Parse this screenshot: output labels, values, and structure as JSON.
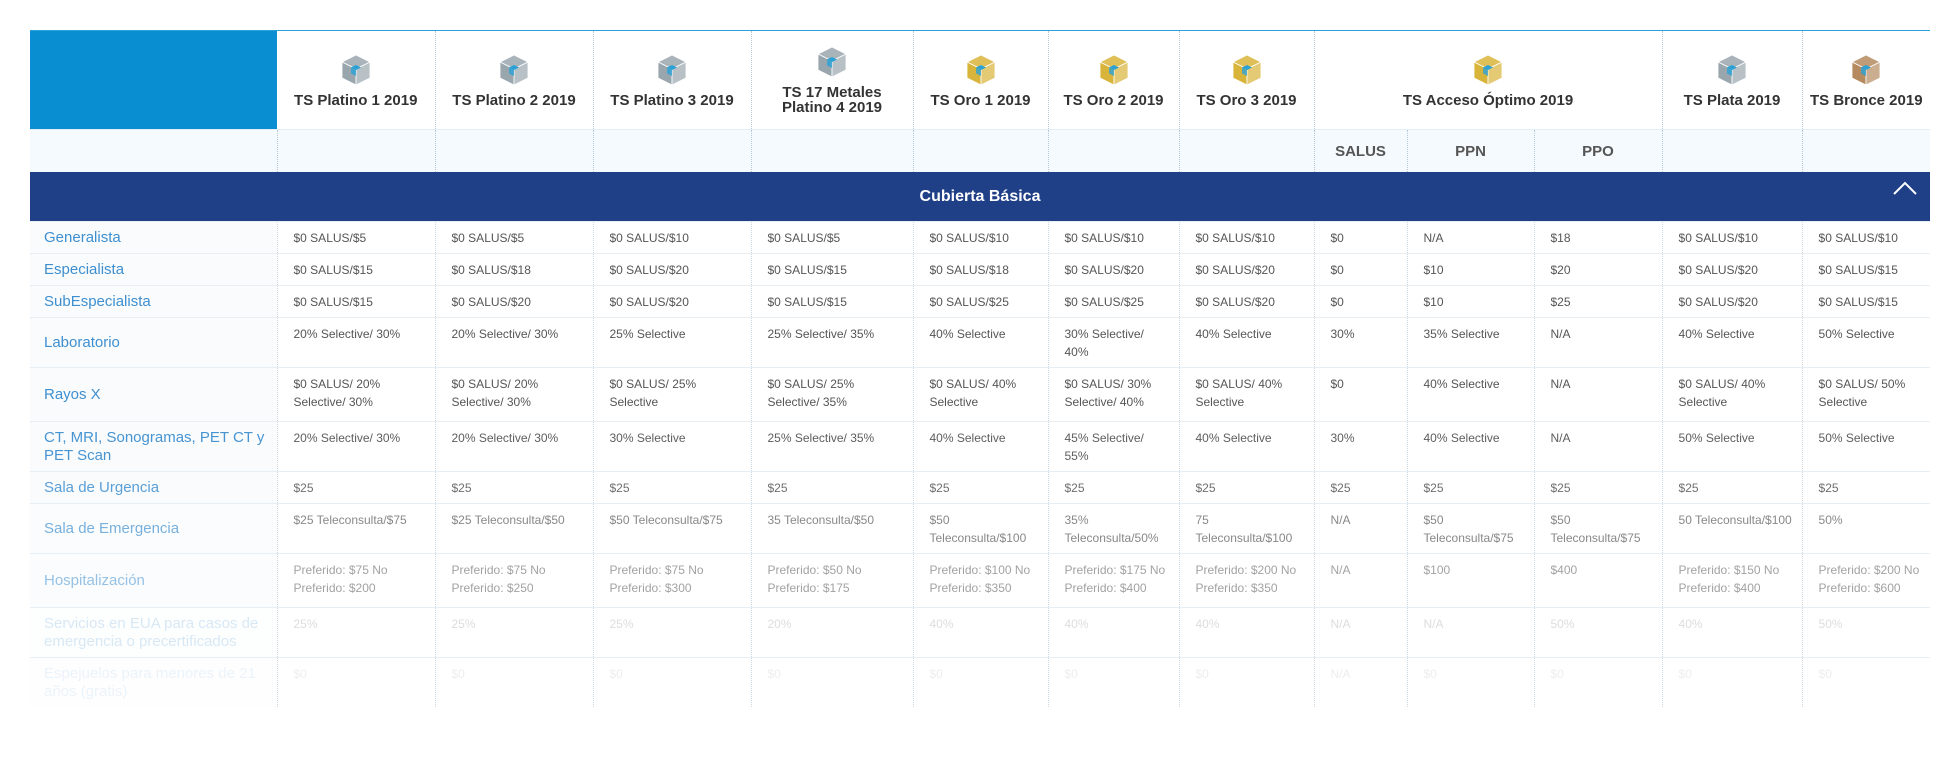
{
  "plans": [
    {
      "name": "TS Platino 1 2019",
      "tier": "platinum"
    },
    {
      "name": "TS Platino 2 2019",
      "tier": "platinum"
    },
    {
      "name": "TS Platino 3 2019",
      "tier": "platinum"
    },
    {
      "name": "TS 17 Metales Platino 4 2019",
      "tier": "platinum"
    },
    {
      "name": "TS Oro 1 2019",
      "tier": "gold"
    },
    {
      "name": "TS Oro 2 2019",
      "tier": "gold"
    },
    {
      "name": "TS Oro 3 2019",
      "tier": "gold"
    },
    {
      "name": "TS Acceso Óptimo 2019",
      "tier": "gold"
    },
    {
      "name": "TS Plata 2019",
      "tier": "silver"
    },
    {
      "name": "TS Bronce 2019",
      "tier": "bronze"
    }
  ],
  "sub_headers": [
    "SALUS",
    "PPN",
    "PPO"
  ],
  "section_title": "Cubierta Básica",
  "colors": {
    "corner_blue": "#0a8ed2",
    "band_navy": "#1f3f87",
    "label_blue": "#3e8fd0",
    "cube_platinum": "#9aa6ae",
    "cube_gold": "#d9b43b",
    "cube_bronze": "#b58a5f",
    "cube_accent": "#2aa2d6"
  },
  "rows": [
    {
      "label": "Generalista",
      "values": [
        "$0 SALUS/$5",
        "$0 SALUS/$5",
        "$0 SALUS/$10",
        "$0 SALUS/$5",
        "$0 SALUS/$10",
        "$0 SALUS/$10",
        "$0 SALUS/$10",
        "$0",
        "N/A",
        "$18",
        "$0 SALUS/$10",
        "$0 SALUS/$10"
      ]
    },
    {
      "label": "Especialista",
      "values": [
        "$0 SALUS/$15",
        "$0 SALUS/$18",
        "$0 SALUS/$20",
        "$0 SALUS/$15",
        "$0 SALUS/$18",
        "$0 SALUS/$20",
        "$0 SALUS/$20",
        "$0",
        "$10",
        "$20",
        "$0 SALUS/$20",
        "$0 SALUS/$15"
      ]
    },
    {
      "label": "SubEspecialista",
      "values": [
        "$0 SALUS/$15",
        "$0 SALUS/$20",
        "$0 SALUS/$20",
        "$0 SALUS/$15",
        "$0 SALUS/$25",
        "$0 SALUS/$25",
        "$0 SALUS/$20",
        "$0",
        "$10",
        "$25",
        "$0 SALUS/$20",
        "$0 SALUS/$15"
      ]
    },
    {
      "label": "Laboratorio",
      "values": [
        "20% Selective/ 30%",
        "20% Selective/ 30%",
        "25% Selective",
        "25% Selective/ 35%",
        "40% Selective",
        "30% Selective/ 40%",
        "40% Selective",
        "30%",
        "35% Selective",
        "N/A",
        "40% Selective",
        "50% Selective"
      ]
    },
    {
      "label": "Rayos X",
      "values": [
        "$0 SALUS/ 20% Selective/ 30%",
        "$0 SALUS/ 20% Selective/ 30%",
        "$0 SALUS/ 25% Selective",
        "$0 SALUS/ 25% Selective/ 35%",
        "$0 SALUS/ 40% Selective",
        "$0 SALUS/ 30% Selective/ 40%",
        "$0 SALUS/ 40% Selective",
        "$0",
        "40% Selective",
        "N/A",
        "$0 SALUS/ 40% Selective",
        "$0 SALUS/ 50% Selective"
      ]
    },
    {
      "label": "CT, MRI, Sonogramas, PET CT y PET Scan",
      "values": [
        "20% Selective/ 30%",
        "20% Selective/ 30%",
        "30% Selective",
        "25% Selective/ 35%",
        "40% Selective",
        "45% Selective/ 55%",
        "40% Selective",
        "30%",
        "40% Selective",
        "N/A",
        "50% Selective",
        "50% Selective"
      ]
    },
    {
      "label": "Sala de Urgencia",
      "values": [
        "$25",
        "$25",
        "$25",
        "$25",
        "$25",
        "$25",
        "$25",
        "$25",
        "$25",
        "$25",
        "$25",
        "$25"
      ]
    },
    {
      "label": "Sala de Emergencia",
      "values": [
        "$25 Teleconsulta/$75",
        "$25 Teleconsulta/$50",
        "$50 Teleconsulta/$75",
        "35 Teleconsulta/$50",
        "$50 Teleconsulta/$100",
        "35% Teleconsulta/50%",
        "75 Teleconsulta/$100",
        "N/A",
        "$50 Teleconsulta/$75",
        "$50 Teleconsulta/$75",
        "50 Teleconsulta/$100",
        "50%"
      ]
    },
    {
      "label": "Hospitalización",
      "values": [
        "Preferido: $75 No Preferido: $200",
        "Preferido: $75 No Preferido: $250",
        "Preferido: $75 No Preferido: $300",
        "Preferido: $50 No Preferido: $175",
        "Preferido: $100 No Preferido: $350",
        "Preferido: $175 No Preferido: $400",
        "Preferido: $200 No Preferido: $350",
        "N/A",
        "$100",
        "$400",
        "Preferido: $150 No Preferido: $400",
        "Preferido: $200 No Preferido: $600"
      ]
    },
    {
      "label": "Servicios en EUA para casos de emergencia o precertificados",
      "values": [
        "25%",
        "25%",
        "25%",
        "20%",
        "40%",
        "40%",
        "40%",
        "N/A",
        "N/A",
        "50%",
        "40%",
        "50%"
      ]
    },
    {
      "label": "Espejuelos para menores de 21 años (gratis)",
      "values": [
        "$0",
        "$0",
        "$0",
        "$0",
        "$0",
        "$0",
        "$0",
        "N/A",
        "$0",
        "$0",
        "$0",
        "$0"
      ]
    }
  ]
}
